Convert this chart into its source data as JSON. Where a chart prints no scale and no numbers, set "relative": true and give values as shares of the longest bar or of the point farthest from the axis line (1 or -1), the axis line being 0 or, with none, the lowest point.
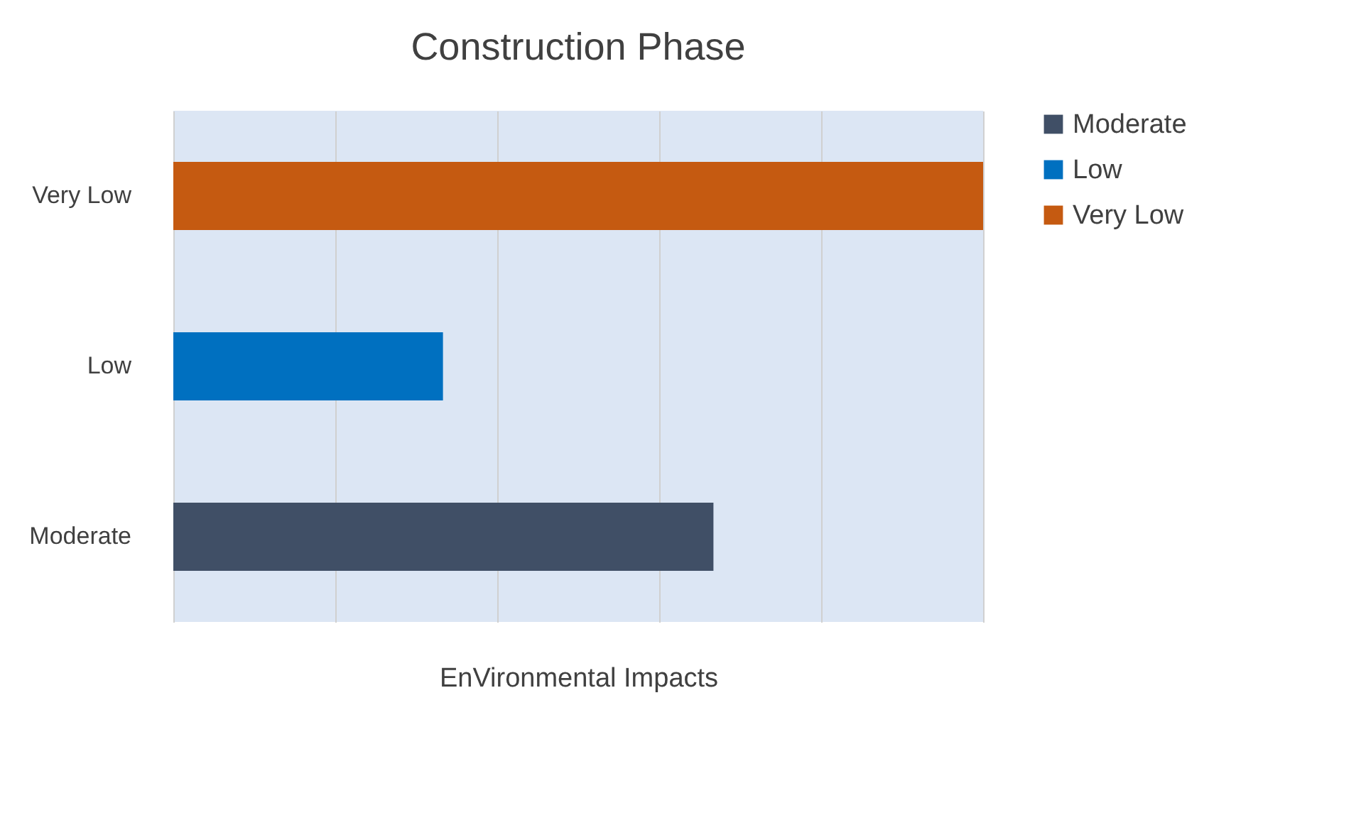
{
  "chart_data": {
    "type": "bar",
    "orientation": "horizontal",
    "relative": true,
    "title": "Construction Phase",
    "xlabel": "EnVironmental Impacts",
    "categories": [
      "Very Low",
      "Low",
      "Moderate"
    ],
    "series": [
      {
        "name": "Moderate",
        "color": "#404f66",
        "values": [
          null,
          null,
          0.667
        ]
      },
      {
        "name": "Low",
        "color": "#0070c0",
        "values": [
          null,
          0.333,
          null
        ]
      },
      {
        "name": "Very Low",
        "color": "#c55a11",
        "values": [
          1,
          null,
          null
        ]
      }
    ],
    "grid": "x",
    "legend": "right"
  }
}
